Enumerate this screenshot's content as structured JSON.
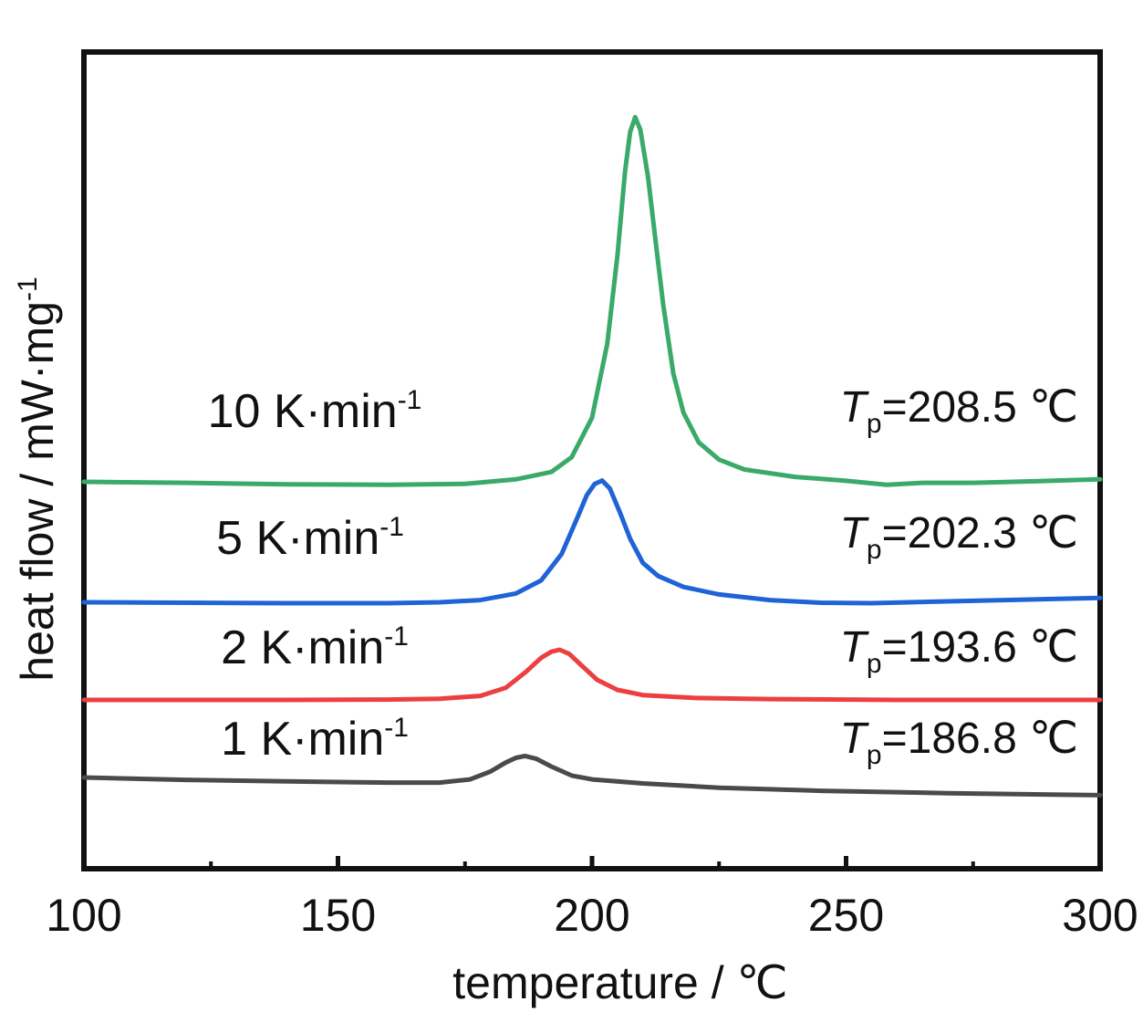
{
  "chart_data": {
    "type": "line",
    "title": "",
    "xlabel": "temperature / ℃",
    "ylabel": "heat flow / mW·mg",
    "ylabel_sup": "-1",
    "xlim": [
      100,
      300
    ],
    "xticks": [
      100,
      150,
      200,
      250,
      300
    ],
    "xtick_labels": [
      "100",
      "150",
      "200",
      "250",
      "300"
    ],
    "minor_xticks": [
      125,
      175,
      225,
      275
    ],
    "y_ticks_shown": false,
    "grid": false,
    "series": [
      {
        "name": "10 K·min",
        "name_sup": "-1",
        "color": "#3aaa69",
        "peak_label_T": "T",
        "peak_label_sub": "p",
        "peak_label_value": "=208.5 ℃",
        "peak_temperature": 208.5,
        "points": [
          [
            100,
            0.0
          ],
          [
            120,
            -0.02
          ],
          [
            140,
            -0.05
          ],
          [
            160,
            -0.06
          ],
          [
            175,
            -0.04
          ],
          [
            185,
            0.05
          ],
          [
            192,
            0.2
          ],
          [
            196,
            0.5
          ],
          [
            200,
            1.3
          ],
          [
            203,
            2.8
          ],
          [
            205,
            4.6
          ],
          [
            206.5,
            6.3
          ],
          [
            207.5,
            7.1
          ],
          [
            208.5,
            7.4
          ],
          [
            209.5,
            7.15
          ],
          [
            211,
            6.2
          ],
          [
            212.5,
            4.9
          ],
          [
            214,
            3.6
          ],
          [
            216,
            2.2
          ],
          [
            218,
            1.4
          ],
          [
            221,
            0.8
          ],
          [
            225,
            0.45
          ],
          [
            230,
            0.25
          ],
          [
            240,
            0.1
          ],
          [
            250,
            0.02
          ],
          [
            258,
            -0.06
          ],
          [
            265,
            -0.02
          ],
          [
            275,
            -0.02
          ],
          [
            290,
            0.02
          ],
          [
            300,
            0.05
          ]
        ]
      },
      {
        "name": "5 K·min",
        "name_sup": "-1",
        "color": "#1f63d6",
        "peak_label_T": "T",
        "peak_label_sub": "p",
        "peak_label_value": "=202.3 ℃",
        "peak_temperature": 202.3,
        "points": [
          [
            100,
            0.0
          ],
          [
            120,
            -0.01
          ],
          [
            140,
            -0.02
          ],
          [
            160,
            -0.02
          ],
          [
            170,
            0.0
          ],
          [
            178,
            0.05
          ],
          [
            185,
            0.2
          ],
          [
            190,
            0.5
          ],
          [
            194,
            1.1
          ],
          [
            197,
            1.9
          ],
          [
            199,
            2.45
          ],
          [
            200.5,
            2.7
          ],
          [
            202,
            2.78
          ],
          [
            203.5,
            2.6
          ],
          [
            205.5,
            2.05
          ],
          [
            207.5,
            1.45
          ],
          [
            210,
            0.9
          ],
          [
            213,
            0.6
          ],
          [
            218,
            0.35
          ],
          [
            225,
            0.18
          ],
          [
            235,
            0.05
          ],
          [
            245,
            -0.01
          ],
          [
            255,
            -0.02
          ],
          [
            270,
            0.02
          ],
          [
            285,
            0.06
          ],
          [
            300,
            0.1
          ]
        ]
      },
      {
        "name": "2 K·min",
        "name_sup": "-1",
        "color": "#ec3f40",
        "peak_label_T": "T",
        "peak_label_sub": "p",
        "peak_label_value": "=193.6 ℃",
        "peak_temperature": 193.6,
        "points": [
          [
            100,
            0.0
          ],
          [
            120,
            0.0
          ],
          [
            140,
            0.0
          ],
          [
            160,
            0.01
          ],
          [
            170,
            0.03
          ],
          [
            178,
            0.1
          ],
          [
            183,
            0.3
          ],
          [
            187,
            0.7
          ],
          [
            190,
            1.05
          ],
          [
            192,
            1.2
          ],
          [
            193.6,
            1.25
          ],
          [
            195.5,
            1.15
          ],
          [
            198,
            0.85
          ],
          [
            201,
            0.5
          ],
          [
            205,
            0.25
          ],
          [
            210,
            0.12
          ],
          [
            220,
            0.05
          ],
          [
            235,
            0.02
          ],
          [
            260,
            0.0
          ],
          [
            300,
            0.0
          ]
        ]
      },
      {
        "name": "1 K·min",
        "name_sup": "-1",
        "color": "#4a4a4a",
        "peak_label_T": "T",
        "peak_label_sub": "p",
        "peak_label_value": "=186.8 ℃",
        "peak_temperature": 186.8,
        "points": [
          [
            100,
            0.0
          ],
          [
            120,
            -0.06
          ],
          [
            140,
            -0.1
          ],
          [
            160,
            -0.13
          ],
          [
            170,
            -0.13
          ],
          [
            176,
            -0.05
          ],
          [
            180,
            0.15
          ],
          [
            183,
            0.38
          ],
          [
            185,
            0.5
          ],
          [
            186.8,
            0.55
          ],
          [
            189,
            0.48
          ],
          [
            192,
            0.28
          ],
          [
            196,
            0.05
          ],
          [
            200,
            -0.05
          ],
          [
            210,
            -0.15
          ],
          [
            225,
            -0.26
          ],
          [
            245,
            -0.34
          ],
          [
            270,
            -0.4
          ],
          [
            300,
            -0.45
          ]
        ]
      }
    ]
  }
}
